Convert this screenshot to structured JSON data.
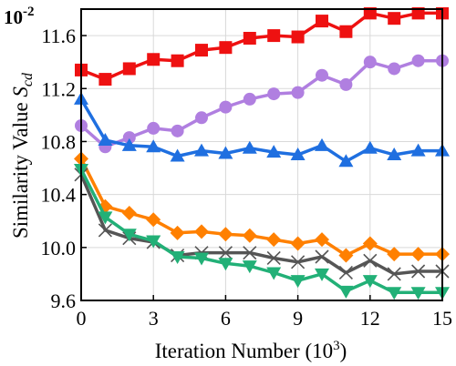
{
  "chart_data": {
    "type": "line",
    "xlabel": "Iteration Number (10",
    "xlabel_sup": "3",
    "xlabel_close": ")",
    "ylabel": "Similarity Value ",
    "ylabel_sym": "S",
    "ylabel_sub": "cd",
    "y_scale_label": "10",
    "y_scale_exp": "-2",
    "xlim": [
      0,
      15
    ],
    "ylim": [
      9.6,
      11.8
    ],
    "x_ticks": [
      "0",
      "3",
      "6",
      "9",
      "12",
      "15"
    ],
    "y_ticks": [
      "9.6",
      "10.0",
      "10.4",
      "10.8",
      "11.2",
      "11.6"
    ],
    "grid": true,
    "x": [
      0,
      1,
      2,
      3,
      4,
      5,
      6,
      7,
      8,
      9,
      10,
      11,
      12,
      13,
      14,
      15
    ],
    "series": [
      {
        "color": "#ee1111",
        "marker": "square",
        "values": [
          11.34,
          11.27,
          11.35,
          11.42,
          11.41,
          11.49,
          11.51,
          11.58,
          11.6,
          11.59,
          11.71,
          11.63,
          11.77,
          11.73,
          11.77,
          11.77
        ]
      },
      {
        "color": "#b07fe0",
        "marker": "circle",
        "values": [
          10.92,
          10.76,
          10.83,
          10.9,
          10.88,
          10.98,
          11.06,
          11.12,
          11.16,
          11.17,
          11.3,
          11.23,
          11.4,
          11.35,
          11.41,
          11.41
        ]
      },
      {
        "color": "#1f6fe0",
        "marker": "triangle-up",
        "values": [
          11.12,
          10.81,
          10.77,
          10.76,
          10.69,
          10.73,
          10.71,
          10.75,
          10.72,
          10.7,
          10.77,
          10.65,
          10.75,
          10.7,
          10.73,
          10.73
        ]
      },
      {
        "color": "#ff8000",
        "marker": "diamond",
        "values": [
          10.67,
          10.31,
          10.26,
          10.21,
          10.11,
          10.12,
          10.1,
          10.09,
          10.06,
          10.03,
          10.06,
          9.94,
          10.03,
          9.95,
          9.95,
          9.95
        ]
      },
      {
        "color": "#555555",
        "marker": "x",
        "values": [
          10.55,
          10.13,
          10.07,
          10.04,
          9.94,
          9.96,
          9.96,
          9.96,
          9.92,
          9.89,
          9.93,
          9.81,
          9.9,
          9.8,
          9.82,
          9.82
        ]
      },
      {
        "color": "#22b077",
        "marker": "triangle-down",
        "values": [
          10.59,
          10.23,
          10.1,
          10.05,
          9.93,
          9.92,
          9.88,
          9.86,
          9.81,
          9.75,
          9.8,
          9.67,
          9.75,
          9.66,
          9.66,
          9.66
        ]
      }
    ]
  }
}
